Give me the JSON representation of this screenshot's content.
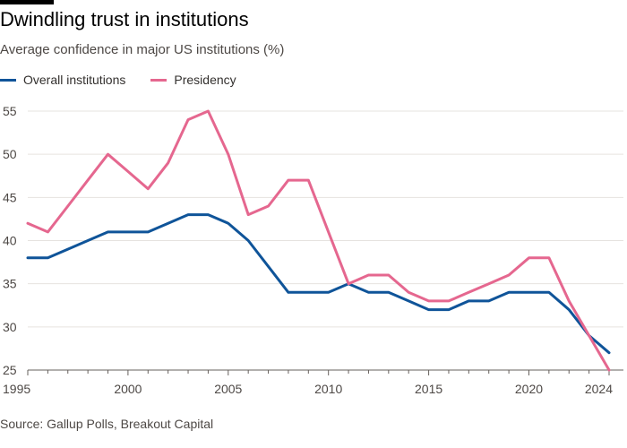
{
  "header": {
    "title": "Dwindling trust in institutions",
    "subtitle": "Average confidence in major US institutions (%)"
  },
  "footer": {
    "source": "Source: Gallup Polls, Breakout Capital"
  },
  "colors": {
    "overall": "#0f5499",
    "presidency": "#e5678f",
    "grid": "#e6e3df",
    "axis": "#66605c"
  },
  "chart_data": {
    "type": "line",
    "title": "Dwindling trust in institutions",
    "subtitle": "Average confidence in major US institutions (%)",
    "xlabel": "",
    "ylabel": "",
    "xlim": [
      1995,
      2024
    ],
    "ylim": [
      25,
      55
    ],
    "x_ticks": [
      1995,
      2000,
      2005,
      2010,
      2015,
      2020,
      2024
    ],
    "y_ticks": [
      25,
      30,
      35,
      40,
      45,
      50,
      55
    ],
    "grid": true,
    "legend_position": "top-left",
    "x": [
      1995,
      1996,
      1997,
      1998,
      1999,
      2000,
      2001,
      2002,
      2003,
      2004,
      2005,
      2006,
      2007,
      2008,
      2009,
      2010,
      2011,
      2012,
      2013,
      2014,
      2015,
      2016,
      2017,
      2018,
      2019,
      2020,
      2021,
      2022,
      2023,
      2024
    ],
    "series": [
      {
        "name": "Overall institutions",
        "color": "#0f5499",
        "values": [
          38,
          38,
          39,
          40,
          41,
          41,
          41,
          42,
          43,
          43,
          42,
          40,
          37,
          34,
          34,
          34,
          35,
          34,
          34,
          33,
          32,
          32,
          33,
          33,
          34,
          34,
          34,
          32,
          29,
          27
        ]
      },
      {
        "name": "Presidency",
        "color": "#e5678f",
        "values": [
          42,
          41,
          44,
          47,
          50,
          48,
          46,
          49,
          54,
          55,
          50,
          43,
          44,
          47,
          47,
          41,
          35,
          36,
          36,
          34,
          33,
          33,
          34,
          35,
          36,
          38,
          38,
          33,
          29,
          25
        ]
      }
    ]
  }
}
